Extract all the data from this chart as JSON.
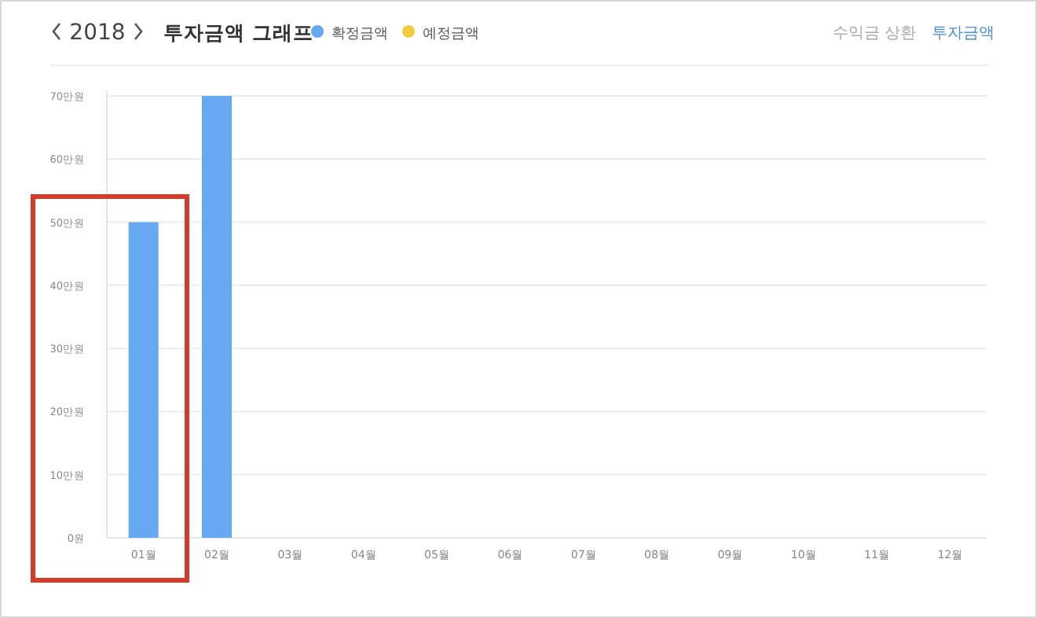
{
  "chart_data": {
    "type": "bar",
    "title": "투자금액 그래프",
    "subtitle": "2018",
    "categories": [
      "01월",
      "02월",
      "03월",
      "04월",
      "05월",
      "06월",
      "07월",
      "08월",
      "09월",
      "10월",
      "11월",
      "12월"
    ],
    "series": [
      {
        "name": "확정금액",
        "color": "#66a9f2",
        "values": [
          50,
          70,
          null,
          null,
          null,
          null,
          null,
          null,
          null,
          null,
          null,
          null
        ]
      },
      {
        "name": "예정금액",
        "color": "#f2cc3c",
        "values": [
          null,
          null,
          null,
          null,
          null,
          null,
          null,
          null,
          null,
          null,
          null,
          null
        ]
      }
    ],
    "ylim": [
      0,
      70
    ],
    "yticks": [
      {
        "value": 0,
        "label": "0원"
      },
      {
        "value": 10,
        "label": "10만원"
      },
      {
        "value": 20,
        "label": "20만원"
      },
      {
        "value": 30,
        "label": "30만원"
      },
      {
        "value": 40,
        "label": "40만원"
      },
      {
        "value": 50,
        "label": "50만원"
      },
      {
        "value": 60,
        "label": "60만원"
      },
      {
        "value": 70,
        "label": "70만원"
      }
    ],
    "grid": "y",
    "legend": "top",
    "annotations": [
      "수익금 상환",
      "투자금액"
    ]
  }
}
